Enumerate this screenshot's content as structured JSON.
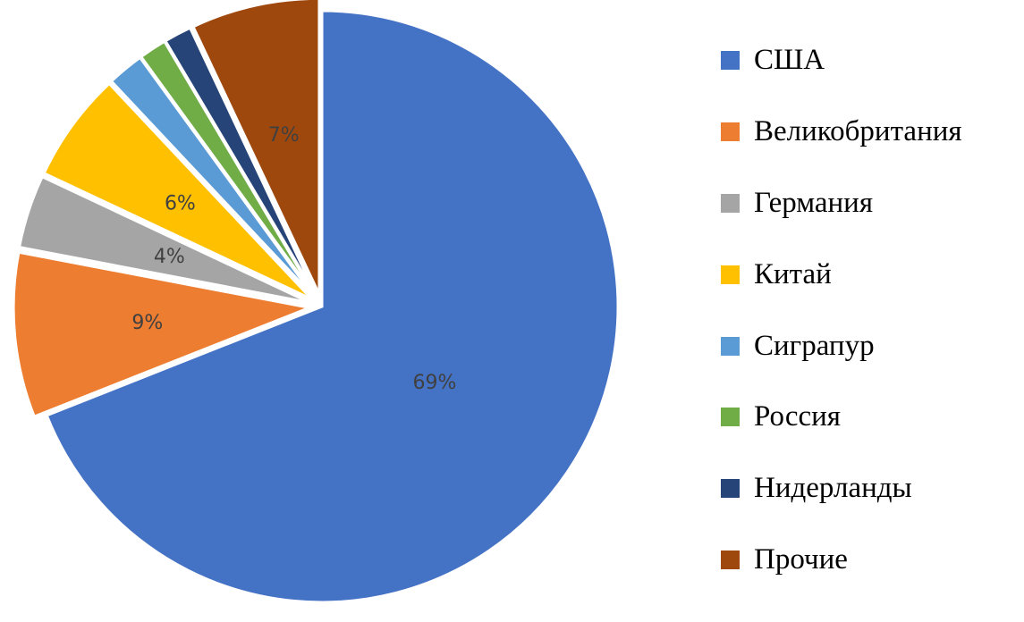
{
  "chart_data": {
    "type": "pie",
    "title": "",
    "legend_position": "right",
    "slices": [
      {
        "name": "США",
        "value": 69,
        "label": "69%",
        "color": "#4472C4"
      },
      {
        "name": "Великобритания",
        "value": 9,
        "label": "9%",
        "color": "#ED7D31"
      },
      {
        "name": "Германия",
        "value": 4,
        "label": "4%",
        "color": "#A5A5A5"
      },
      {
        "name": "Китай",
        "value": 6,
        "label": "6%",
        "color": "#FFC000"
      },
      {
        "name": "Сиграпур",
        "value": 2,
        "label": "",
        "color": "#5B9BD5"
      },
      {
        "name": "Россия",
        "value": 1.5,
        "label": "",
        "color": "#70AD47"
      },
      {
        "name": "Нидерланды",
        "value": 1.5,
        "label": "",
        "color": "#264478"
      },
      {
        "name": "Прочие",
        "value": 7,
        "label": "7%",
        "color": "#9E480E"
      }
    ]
  }
}
